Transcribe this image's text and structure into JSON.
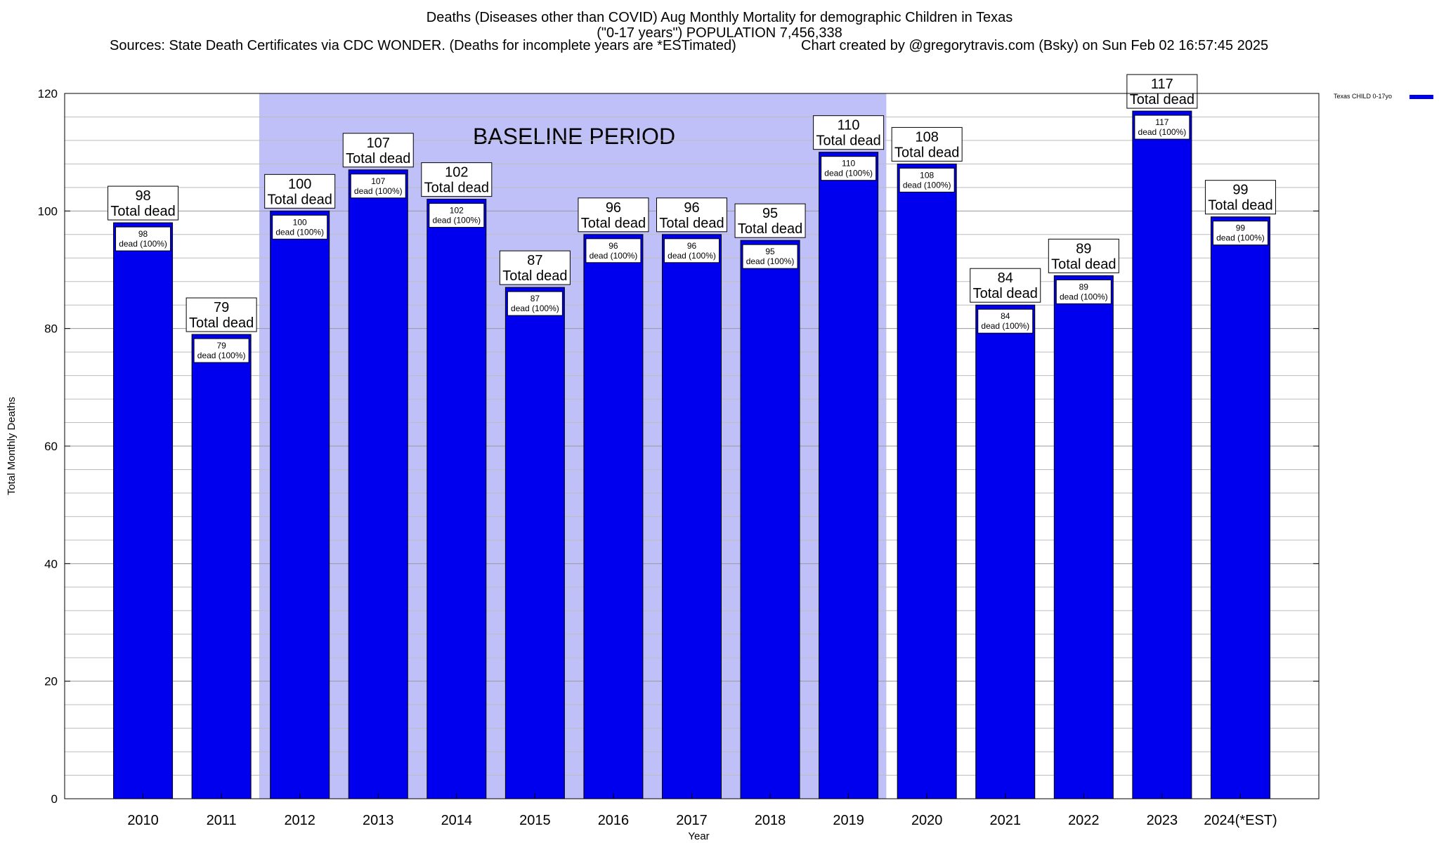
{
  "chart_data": {
    "type": "bar",
    "title": "Deaths (Diseases other than COVID) Aug Monthly Mortality for demographic Children in Texas",
    "subtitle": "(\"0-17 years\") POPULATION 7,456,338",
    "sources": "Sources: State Death Certificates via CDC WONDER. (Deaths for incomplete years are *ESTimated)",
    "credit": "Chart created by @gregorytravis.com (Bsky) on Sun Feb 02 16:57:45 2025",
    "xlabel": "Year",
    "ylabel": "Total Monthly Deaths",
    "ylim": [
      0,
      120
    ],
    "yticks": [
      0,
      20,
      40,
      60,
      80,
      100,
      120
    ],
    "grid": true,
    "legend_position": "top-right",
    "categories": [
      "2010",
      "2011",
      "2012",
      "2013",
      "2014",
      "2015",
      "2016",
      "2017",
      "2018",
      "2019",
      "2020",
      "2021",
      "2022",
      "2023",
      "2024(*EST)"
    ],
    "series": [
      {
        "name": "Texas CHILD 0-17yo",
        "color": "#0000ee",
        "values": [
          98,
          79,
          100,
          107,
          102,
          87,
          96,
          96,
          95,
          110,
          108,
          84,
          89,
          117,
          99
        ]
      }
    ],
    "total_label_text": "Total dead",
    "inner_label_text": "dead (100%)",
    "baseline": {
      "label": "BASELINE PERIOD",
      "start": "2012",
      "end": "2019",
      "color": "#c0c0f8"
    }
  }
}
